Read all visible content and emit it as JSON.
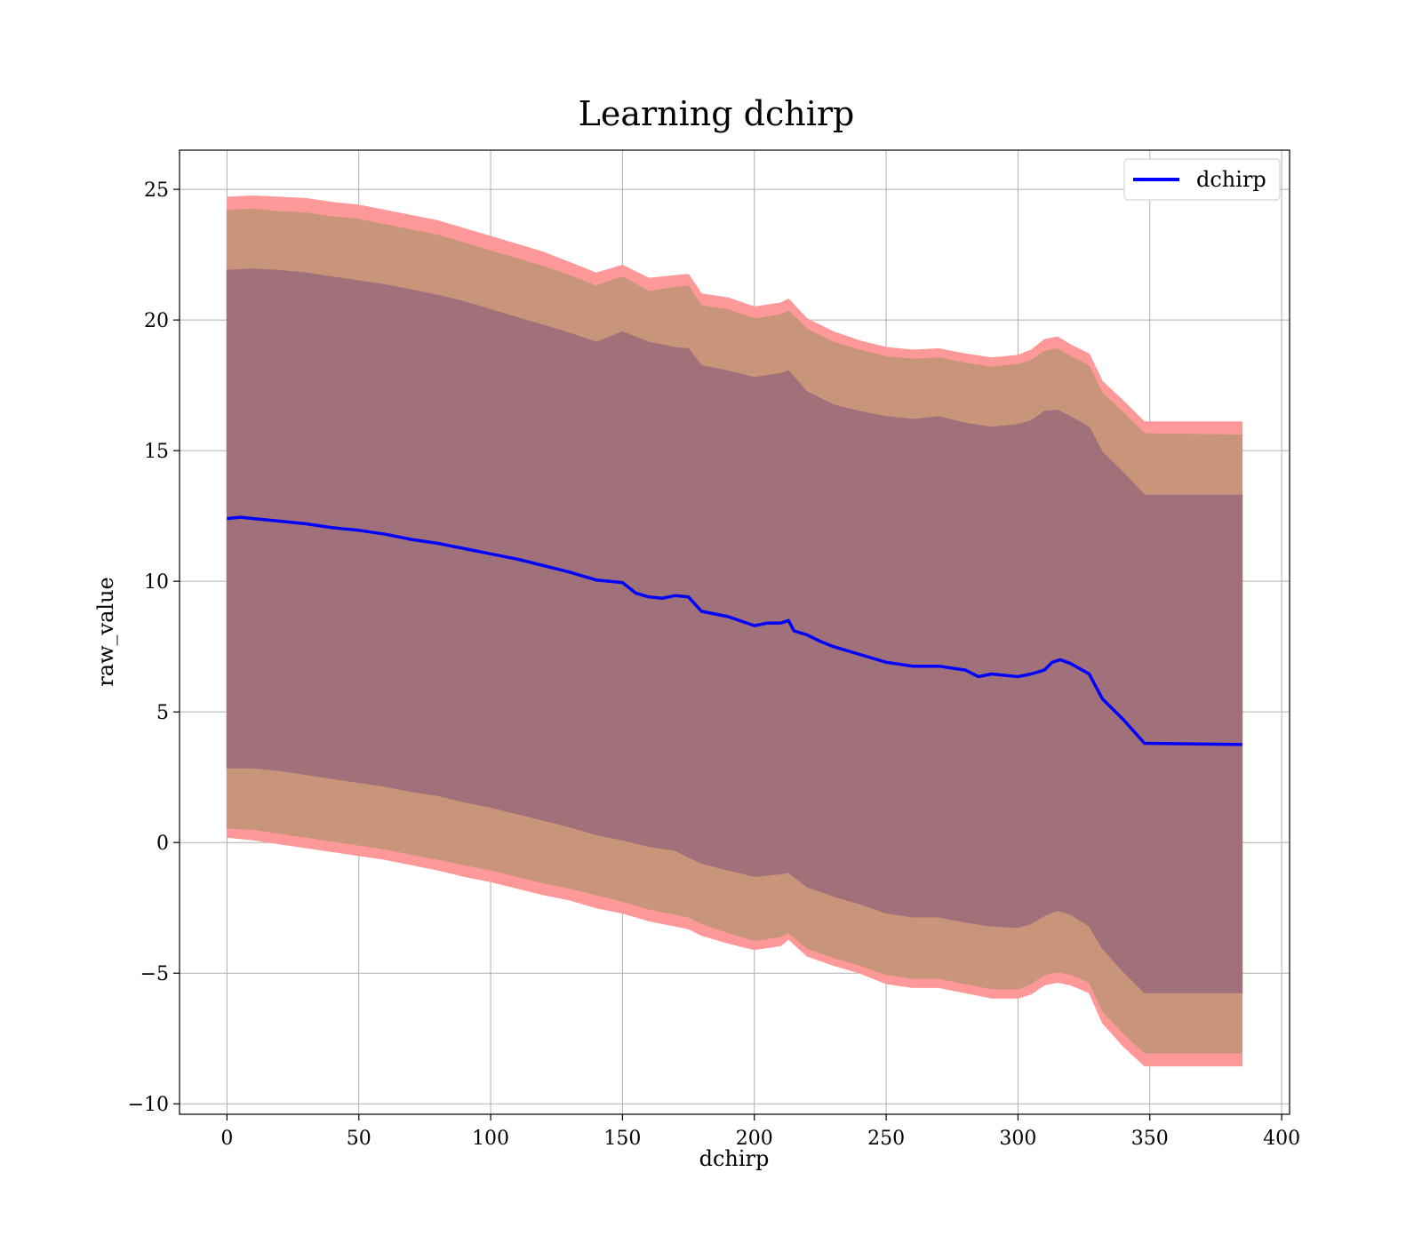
{
  "chart_data": {
    "type": "area",
    "title": "Learning dchirp",
    "xlabel": "dchirp",
    "ylabel": "raw_value",
    "xlim": [
      -18,
      403
    ],
    "ylim": [
      -10.4,
      26.5
    ],
    "xticks": [
      0,
      50,
      100,
      150,
      200,
      250,
      300,
      350,
      400
    ],
    "yticks": [
      -10,
      -5,
      0,
      5,
      10,
      15,
      20,
      25
    ],
    "xtick_labels": [
      "0",
      "50",
      "100",
      "150",
      "200",
      "250",
      "300",
      "350",
      "400"
    ],
    "ytick_labels": [
      "−10",
      "−5",
      "0",
      "5",
      "10",
      "15",
      "20",
      "25"
    ],
    "grid": true,
    "legend_position": "top-right",
    "colors": {
      "mean_line": "#0000ff",
      "band_outer": "#ff9999",
      "band_middle": "#c8957a",
      "band_inner": "#a0717a"
    },
    "series": [
      {
        "name": "dchirp",
        "x": [
          0,
          5,
          10,
          20,
          30,
          40,
          50,
          60,
          70,
          80,
          90,
          100,
          110,
          120,
          130,
          140,
          150,
          155,
          160,
          165,
          170,
          175,
          180,
          190,
          200,
          205,
          210,
          213,
          215,
          220,
          225,
          230,
          240,
          250,
          260,
          270,
          280,
          285,
          290,
          295,
          300,
          305,
          310,
          313,
          316,
          320,
          327,
          332,
          340,
          348,
          385
        ],
        "y": [
          12.4,
          12.45,
          12.4,
          12.3,
          12.2,
          12.05,
          11.95,
          11.8,
          11.6,
          11.45,
          11.25,
          11.05,
          10.85,
          10.6,
          10.35,
          10.05,
          9.95,
          9.55,
          9.4,
          9.35,
          9.45,
          9.4,
          8.85,
          8.65,
          8.3,
          8.4,
          8.4,
          8.5,
          8.1,
          7.95,
          7.7,
          7.5,
          7.2,
          6.9,
          6.75,
          6.75,
          6.6,
          6.35,
          6.45,
          6.4,
          6.35,
          6.45,
          6.6,
          6.9,
          7.0,
          6.85,
          6.45,
          5.5,
          4.7,
          3.8,
          3.75
        ]
      }
    ],
    "bands": [
      {
        "x": [
          0,
          10,
          20,
          30,
          40,
          50,
          60,
          70,
          80,
          90,
          100,
          110,
          120,
          130,
          140,
          150,
          160,
          170,
          175,
          180,
          190,
          200,
          210,
          213,
          220,
          230,
          240,
          250,
          260,
          270,
          280,
          290,
          300,
          305,
          310,
          315,
          320,
          327,
          332,
          340,
          348,
          385
        ],
        "lower": [
          0.2,
          0.1,
          -0.05,
          -0.2,
          -0.35,
          -0.5,
          -0.65,
          -0.85,
          -1.05,
          -1.3,
          -1.5,
          -1.75,
          -2.0,
          -2.2,
          -2.5,
          -2.7,
          -3.0,
          -3.2,
          -3.3,
          -3.55,
          -3.85,
          -4.1,
          -3.95,
          -3.7,
          -4.35,
          -4.7,
          -5.0,
          -5.4,
          -5.55,
          -5.55,
          -5.75,
          -5.95,
          -5.95,
          -5.8,
          -5.45,
          -5.35,
          -5.45,
          -5.75,
          -6.9,
          -7.8,
          -8.55,
          -8.55
        ],
        "upper": [
          24.7,
          24.75,
          24.7,
          24.65,
          24.5,
          24.4,
          24.2,
          24.0,
          23.8,
          23.5,
          23.2,
          22.9,
          22.6,
          22.2,
          21.8,
          22.1,
          21.6,
          21.7,
          21.75,
          21.0,
          20.85,
          20.5,
          20.65,
          20.8,
          20.05,
          19.55,
          19.2,
          18.95,
          18.85,
          18.9,
          18.7,
          18.55,
          18.65,
          18.85,
          19.25,
          19.35,
          19.05,
          18.7,
          17.65,
          16.9,
          16.1,
          16.1
        ]
      },
      {
        "x": [
          0,
          10,
          20,
          30,
          40,
          50,
          60,
          70,
          80,
          90,
          100,
          110,
          120,
          130,
          140,
          150,
          160,
          170,
          175,
          180,
          190,
          200,
          210,
          213,
          220,
          230,
          240,
          250,
          260,
          270,
          280,
          290,
          300,
          305,
          310,
          315,
          320,
          327,
          332,
          340,
          348,
          385
        ],
        "lower": [
          0.55,
          0.5,
          0.35,
          0.2,
          0.05,
          -0.1,
          -0.25,
          -0.45,
          -0.65,
          -0.85,
          -1.05,
          -1.3,
          -1.55,
          -1.75,
          -2.0,
          -2.25,
          -2.55,
          -2.75,
          -2.85,
          -3.1,
          -3.45,
          -3.75,
          -3.6,
          -3.45,
          -4.05,
          -4.4,
          -4.7,
          -5.05,
          -5.2,
          -5.2,
          -5.4,
          -5.6,
          -5.6,
          -5.4,
          -5.05,
          -4.95,
          -5.05,
          -5.35,
          -6.45,
          -7.3,
          -8.05,
          -8.05
        ],
        "upper": [
          24.2,
          24.25,
          24.15,
          24.1,
          23.95,
          23.85,
          23.65,
          23.45,
          23.25,
          22.95,
          22.65,
          22.35,
          22.05,
          21.7,
          21.3,
          21.65,
          21.1,
          21.25,
          21.3,
          20.55,
          20.4,
          20.05,
          20.2,
          20.35,
          19.65,
          19.15,
          18.85,
          18.6,
          18.5,
          18.55,
          18.35,
          18.2,
          18.3,
          18.45,
          18.8,
          18.9,
          18.6,
          18.25,
          17.2,
          16.45,
          15.65,
          15.6
        ]
      },
      {
        "x": [
          0,
          10,
          20,
          30,
          40,
          50,
          60,
          70,
          80,
          90,
          100,
          110,
          120,
          130,
          140,
          150,
          160,
          170,
          175,
          180,
          190,
          200,
          210,
          213,
          220,
          230,
          240,
          250,
          260,
          270,
          280,
          290,
          300,
          305,
          310,
          315,
          320,
          327,
          332,
          340,
          348,
          385
        ],
        "lower": [
          2.85,
          2.85,
          2.75,
          2.6,
          2.45,
          2.3,
          2.15,
          1.95,
          1.8,
          1.55,
          1.35,
          1.1,
          0.85,
          0.6,
          0.3,
          0.1,
          -0.15,
          -0.3,
          -0.55,
          -0.8,
          -1.05,
          -1.3,
          -1.2,
          -1.15,
          -1.7,
          -2.05,
          -2.35,
          -2.7,
          -2.85,
          -2.85,
          -3.05,
          -3.2,
          -3.25,
          -3.1,
          -2.8,
          -2.6,
          -2.75,
          -3.2,
          -4.05,
          -4.95,
          -5.75,
          -5.75
        ],
        "upper": [
          21.9,
          21.95,
          21.9,
          21.8,
          21.65,
          21.5,
          21.35,
          21.15,
          20.95,
          20.7,
          20.4,
          20.1,
          19.8,
          19.5,
          19.15,
          19.55,
          19.15,
          18.95,
          18.9,
          18.25,
          18.05,
          17.8,
          17.95,
          18.05,
          17.25,
          16.75,
          16.5,
          16.3,
          16.2,
          16.3,
          16.05,
          15.9,
          16.0,
          16.15,
          16.5,
          16.55,
          16.3,
          15.9,
          14.95,
          14.15,
          13.3,
          13.3
        ]
      }
    ]
  }
}
